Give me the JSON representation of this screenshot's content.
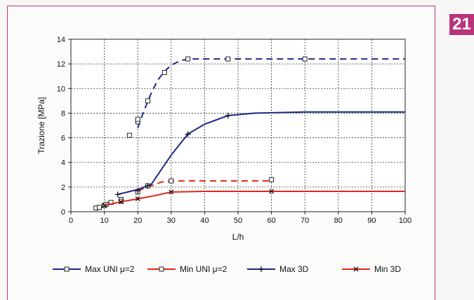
{
  "badge": {
    "label": "21"
  },
  "colors": {
    "frame": "#b8357a",
    "blue": "#1f2a8a",
    "red": "#e0261b"
  },
  "chart_data": {
    "type": "line",
    "title": "",
    "xlabel": "L/h",
    "ylabel": "Trazione [MPa]",
    "xlim": [
      0,
      100
    ],
    "ylim": [
      0,
      14
    ],
    "xticks": [
      0,
      10,
      20,
      30,
      40,
      50,
      60,
      70,
      80,
      90,
      100
    ],
    "yticks": [
      0,
      2,
      4,
      6,
      8,
      10,
      12,
      14
    ],
    "grid": true,
    "legend_position": "bottom",
    "series": [
      {
        "name": "Max UNI μ=2",
        "color": "#1f2a8a",
        "dash": true,
        "marker": "square",
        "markers": [
          [
            7.5,
            0.3
          ],
          [
            8.5,
            0.35
          ],
          [
            10,
            0.5
          ],
          [
            10.5,
            0.6
          ],
          [
            12,
            0.75
          ],
          [
            15,
            1.0
          ],
          [
            17.5,
            6.2
          ],
          [
            20,
            7.3
          ],
          [
            20,
            7.5
          ],
          [
            23,
            9.0
          ],
          [
            28,
            11.3
          ],
          [
            35,
            12.4
          ],
          [
            47,
            12.4
          ],
          [
            70,
            12.4
          ]
        ],
        "line": [
          [
            20,
            6.8
          ],
          [
            22,
            8.3
          ],
          [
            24,
            9.6
          ],
          [
            26,
            10.7
          ],
          [
            28,
            11.4
          ],
          [
            30,
            11.9
          ],
          [
            33,
            12.3
          ],
          [
            36,
            12.4
          ],
          [
            100,
            12.4
          ]
        ]
      },
      {
        "name": "Min UNI μ=2",
        "color": "#e0261b",
        "dash": true,
        "marker": "square",
        "markers": [
          [
            15,
            0.85
          ],
          [
            20,
            1.6
          ],
          [
            23,
            2.1
          ],
          [
            30,
            2.5
          ],
          [
            60,
            2.6
          ]
        ],
        "line": [
          [
            20,
            1.7
          ],
          [
            24,
            2.1
          ],
          [
            27,
            2.4
          ],
          [
            30,
            2.5
          ],
          [
            60,
            2.5
          ]
        ]
      },
      {
        "name": "Max 3D",
        "color": "#1f2a8a",
        "dash": false,
        "marker": "plus",
        "markers": [
          [
            14,
            1.4
          ],
          [
            20,
            1.7
          ],
          [
            23,
            2.1
          ],
          [
            35,
            6.3
          ],
          [
            47,
            7.8
          ]
        ],
        "line": [
          [
            14,
            1.4
          ],
          [
            20,
            1.8
          ],
          [
            24,
            2.2
          ],
          [
            30,
            4.6
          ],
          [
            35,
            6.3
          ],
          [
            40,
            7.1
          ],
          [
            47,
            7.8
          ],
          [
            55,
            8.0
          ],
          [
            70,
            8.1
          ],
          [
            100,
            8.1
          ]
        ]
      },
      {
        "name": "Min 3D",
        "color": "#e0261b",
        "dash": false,
        "marker": "x",
        "markers": [
          [
            10,
            0.5
          ],
          [
            15,
            0.8
          ],
          [
            20,
            1.05
          ],
          [
            30,
            1.6
          ],
          [
            60,
            1.65
          ]
        ],
        "line": [
          [
            10,
            0.5
          ],
          [
            15,
            0.8
          ],
          [
            20,
            1.05
          ],
          [
            25,
            1.3
          ],
          [
            30,
            1.6
          ],
          [
            40,
            1.65
          ],
          [
            100,
            1.65
          ]
        ]
      }
    ]
  }
}
